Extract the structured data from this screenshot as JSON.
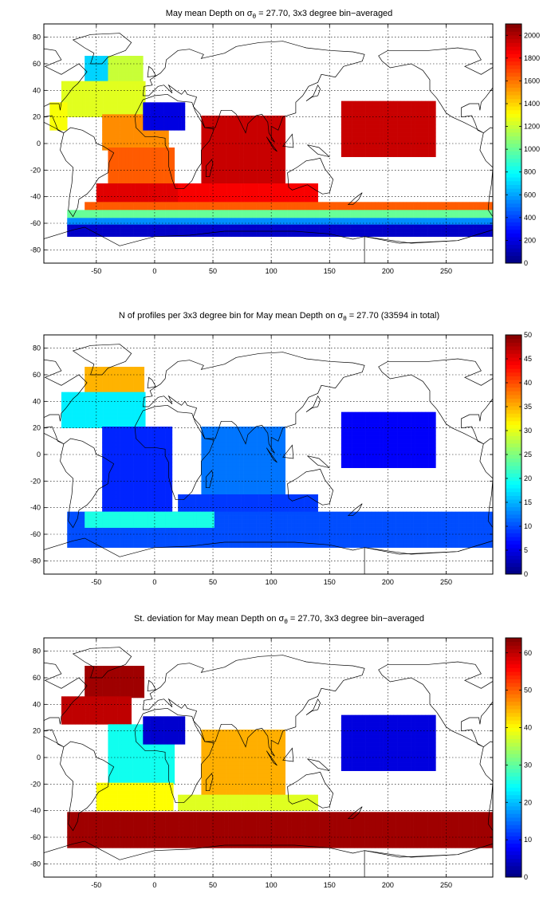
{
  "colors": {
    "colormap": "jet"
  },
  "chart_data": [
    {
      "type": "heatmap",
      "title": "May mean Depth on σθ = 27.70, 3x3 degree bin−averaged",
      "title_parts": [
        "May mean Depth on σ",
        "θ",
        " = 27.70, 3x3 degree bin−averaged"
      ],
      "xlabel": "",
      "ylabel": "",
      "xlim": [
        -95,
        290
      ],
      "ylim": [
        -90,
        90
      ],
      "xticks": [
        -50,
        0,
        50,
        100,
        150,
        200,
        250
      ],
      "yticks": [
        80,
        60,
        40,
        20,
        0,
        -20,
        -40,
        -60,
        -80
      ],
      "grid": true,
      "colorbar": {
        "min": 0,
        "max": 2100,
        "ticks": [
          0,
          200,
          400,
          600,
          800,
          1000,
          1200,
          1400,
          1600,
          1800,
          2000
        ]
      },
      "regions": [
        {
          "x": [
            -60,
            -40
          ],
          "y": [
            45,
            65
          ],
          "value": 700
        },
        {
          "x": [
            -40,
            -10
          ],
          "y": [
            45,
            65
          ],
          "value": 1200
        },
        {
          "x": [
            -80,
            -10
          ],
          "y": [
            20,
            45
          ],
          "value": 1250
        },
        {
          "x": [
            -90,
            -75
          ],
          "y": [
            10,
            30
          ],
          "value": 1300
        },
        {
          "x": [
            -45,
            10
          ],
          "y": [
            -5,
            20
          ],
          "value": 1550
        },
        {
          "x": [
            -40,
            15
          ],
          "y": [
            -30,
            -5
          ],
          "value": 1650
        },
        {
          "x": [
            -50,
            20
          ],
          "y": [
            -45,
            -30
          ],
          "value": 1900
        },
        {
          "x": [
            40,
            110
          ],
          "y": [
            -30,
            20
          ],
          "value": 1950
        },
        {
          "x": [
            20,
            140
          ],
          "y": [
            -45,
            -30
          ],
          "value": 1850
        },
        {
          "x": [
            -60,
            290
          ],
          "y": [
            -50,
            -45
          ],
          "value": 1650
        },
        {
          "x": [
            -75,
            290
          ],
          "y": [
            -56,
            -50
          ],
          "value": 1000
        },
        {
          "x": [
            -75,
            290
          ],
          "y": [
            -62,
            -56
          ],
          "value": 550
        },
        {
          "x": [
            -75,
            290
          ],
          "y": [
            -70,
            -62
          ],
          "value": 150
        },
        {
          "x": [
            -10,
            25
          ],
          "y": [
            10,
            30
          ],
          "value": 200
        },
        {
          "x": [
            160,
            240
          ],
          "y": [
            -10,
            30
          ],
          "value": 1950
        }
      ]
    },
    {
      "type": "heatmap",
      "title": "N of profiles per 3x3 degree bin for May mean Depth on σθ = 27.70 (33594 in total)",
      "title_parts": [
        "N of profiles per 3x3 degree bin for May mean Depth on σ",
        "θ",
        " = 27.70 (33594 in total)"
      ],
      "xlabel": "",
      "ylabel": "",
      "xlim": [
        -95,
        290
      ],
      "ylim": [
        -90,
        90
      ],
      "xticks": [
        -50,
        0,
        50,
        100,
        150,
        200,
        250
      ],
      "yticks": [
        80,
        60,
        40,
        20,
        0,
        -20,
        -40,
        -60,
        -80
      ],
      "grid": true,
      "colorbar": {
        "min": 0,
        "max": 50,
        "ticks": [
          0,
          5,
          10,
          15,
          20,
          25,
          30,
          35,
          40,
          45,
          50
        ]
      },
      "regions": [
        {
          "x": [
            -60,
            -10
          ],
          "y": [
            45,
            65
          ],
          "value": 35
        },
        {
          "x": [
            -80,
            -10
          ],
          "y": [
            20,
            45
          ],
          "value": 18
        },
        {
          "x": [
            -45,
            15
          ],
          "y": [
            -45,
            20
          ],
          "value": 8
        },
        {
          "x": [
            40,
            110
          ],
          "y": [
            -30,
            20
          ],
          "value": 12
        },
        {
          "x": [
            20,
            140
          ],
          "y": [
            -45,
            -30
          ],
          "value": 9
        },
        {
          "x": [
            -75,
            290
          ],
          "y": [
            -70,
            -45
          ],
          "value": 10
        },
        {
          "x": [
            -60,
            50
          ],
          "y": [
            -55,
            -45
          ],
          "value": 20
        },
        {
          "x": [
            160,
            240
          ],
          "y": [
            -10,
            30
          ],
          "value": 6
        }
      ]
    },
    {
      "type": "heatmap",
      "title": "St. deviation for May mean Depth on σθ = 27.70, 3x3 degree bin−averaged",
      "title_parts": [
        "St. deviation for May mean Depth on σ",
        "θ",
        " = 27.70, 3x3 degree bin−averaged"
      ],
      "xlabel": "",
      "ylabel": "",
      "xlim": [
        -95,
        290
      ],
      "ylim": [
        -90,
        90
      ],
      "xticks": [
        -50,
        0,
        50,
        100,
        150,
        200,
        250
      ],
      "yticks": [
        80,
        60,
        40,
        20,
        0,
        -20,
        -40,
        -60,
        -80
      ],
      "grid": true,
      "colorbar": {
        "min": 0,
        "max": 64,
        "ticks": [
          0,
          10,
          20,
          30,
          40,
          50,
          60
        ]
      },
      "regions": [
        {
          "x": [
            -60,
            -10
          ],
          "y": [
            45,
            68
          ],
          "value": 62
        },
        {
          "x": [
            -80,
            -20
          ],
          "y": [
            25,
            45
          ],
          "value": 60
        },
        {
          "x": [
            -40,
            15
          ],
          "y": [
            -20,
            25
          ],
          "value": 25
        },
        {
          "x": [
            -50,
            15
          ],
          "y": [
            -40,
            -20
          ],
          "value": 40
        },
        {
          "x": [
            40,
            110
          ],
          "y": [
            -30,
            20
          ],
          "value": 45
        },
        {
          "x": [
            20,
            140
          ],
          "y": [
            -40,
            -30
          ],
          "value": 38
        },
        {
          "x": [
            -75,
            290
          ],
          "y": [
            -68,
            -42
          ],
          "value": 62
        },
        {
          "x": [
            -10,
            25
          ],
          "y": [
            10,
            30
          ],
          "value": 5
        },
        {
          "x": [
            160,
            240
          ],
          "y": [
            -10,
            30
          ],
          "value": 6
        }
      ]
    }
  ]
}
